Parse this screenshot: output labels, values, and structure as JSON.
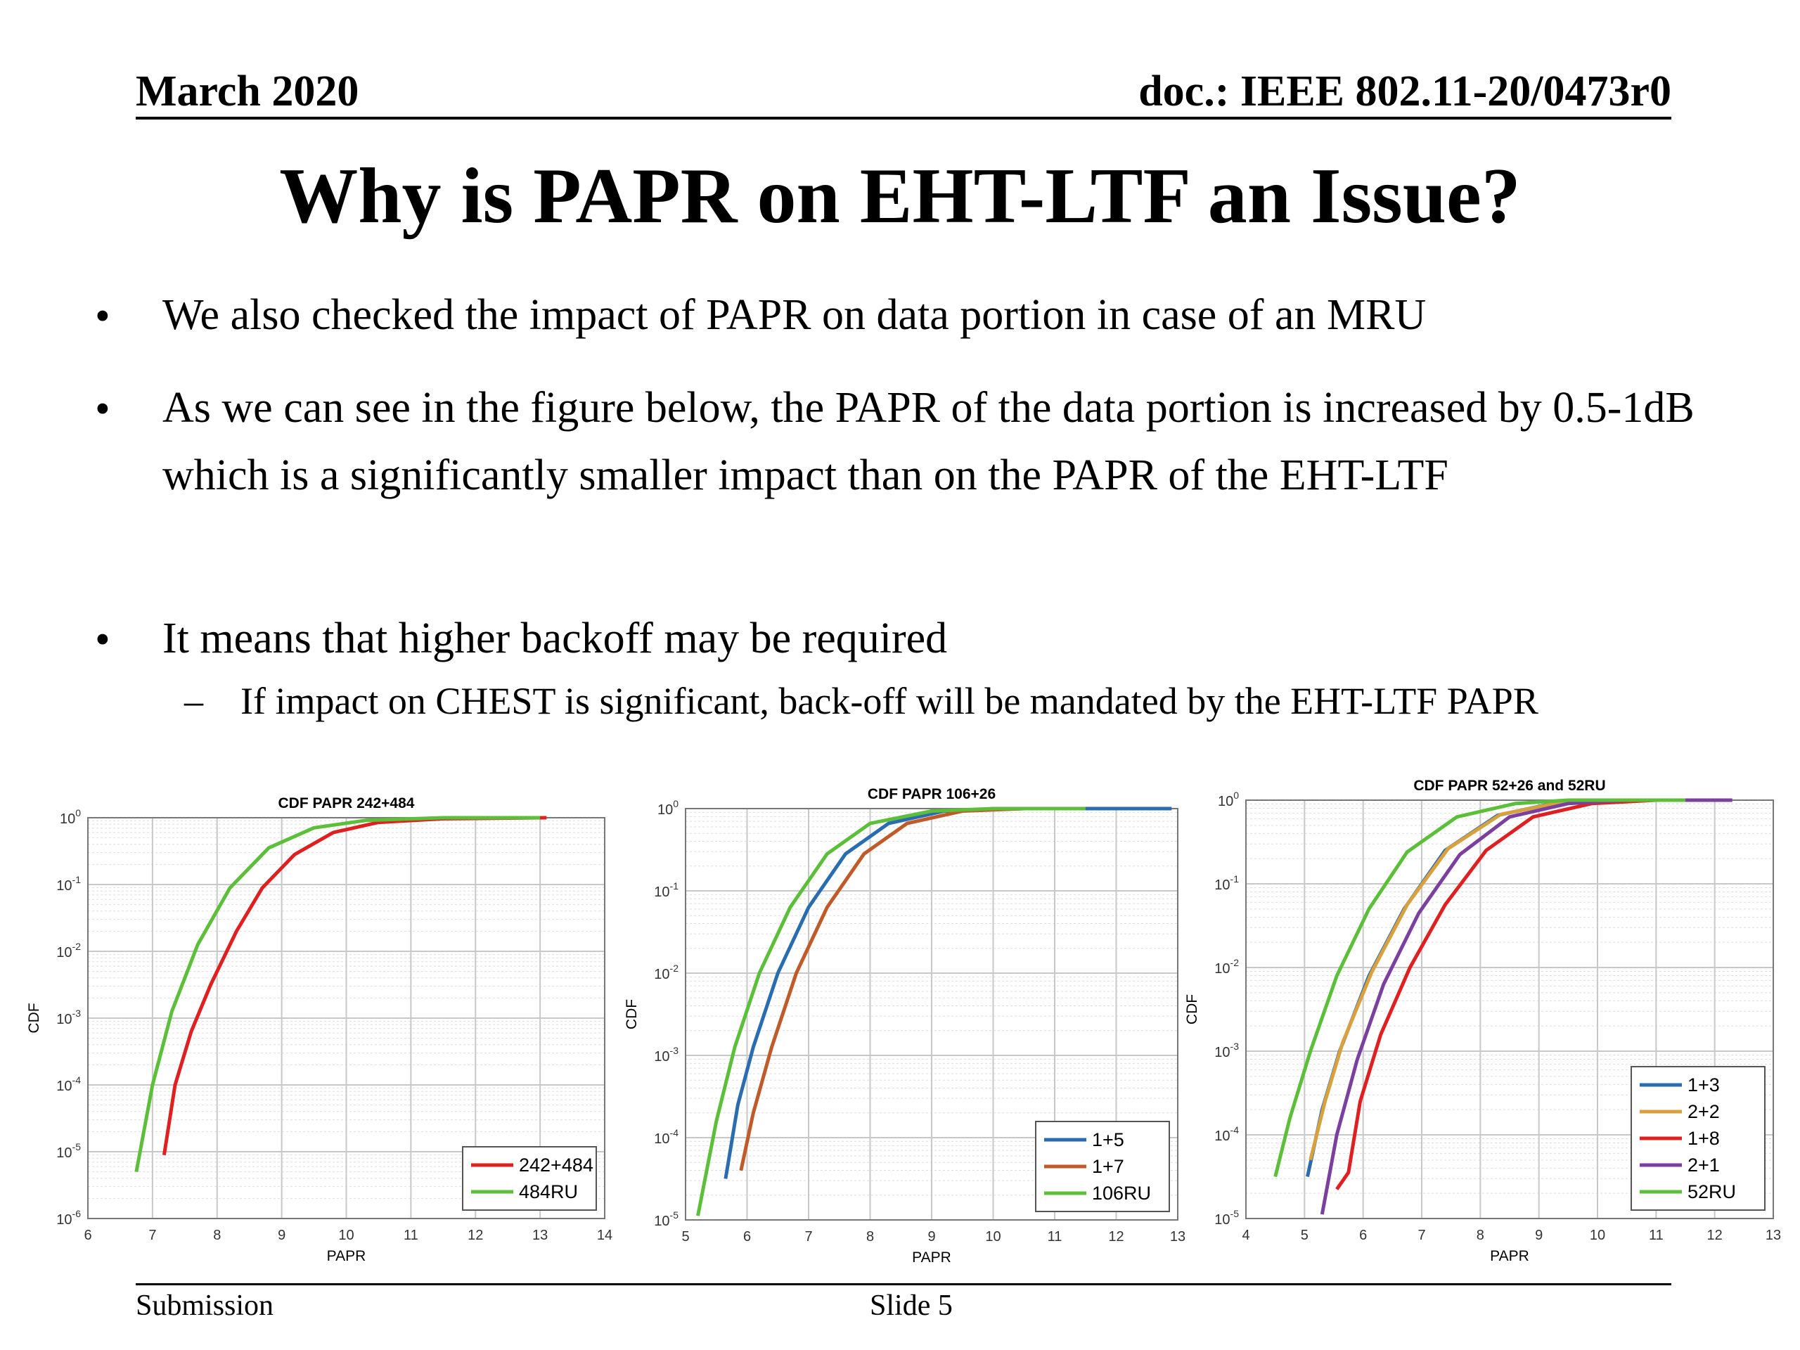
{
  "header": {
    "date": "March 2020",
    "doc": "doc.: IEEE 802.11-20/0473r0"
  },
  "title": "Why is PAPR on EHT-LTF an Issue?",
  "bullets": [
    {
      "marker": "•",
      "text": "We also checked the impact of PAPR on data portion in case of an MRU"
    },
    {
      "marker": "•",
      "text": "As we can see in the figure below, the PAPR of the data portion is increased by 0.5-1dB which is a significantly smaller impact than on the PAPR of the EHT-LTF"
    },
    {
      "marker": "•",
      "text": "It means that higher backoff may be required"
    }
  ],
  "sub_bullet": {
    "marker": "–",
    "text": "If impact on CHEST is significant, back-off will be mandated by the EHT-LTF PAPR"
  },
  "footer": {
    "left": "Submission",
    "center": "Slide 5"
  },
  "chart_data": [
    {
      "type": "line",
      "title": "CDF PAPR 242+484",
      "xlabel": "PAPR",
      "ylabel": "CDF",
      "xlim": [
        6,
        14
      ],
      "ylim_exp": [
        -6,
        0
      ],
      "yscale": "log",
      "xticks": [
        "6",
        "7",
        "8",
        "9",
        "10",
        "11",
        "12",
        "13",
        "14"
      ],
      "yticks": [
        "10^-6",
        "10^-5",
        "10^-4",
        "10^-3",
        "10^-2",
        "10^-1",
        "10^0"
      ],
      "grid": true,
      "legend": "bottom-right",
      "series": [
        {
          "name": "242+484",
          "color": "#e02020",
          "exp_values": true,
          "points": [
            [
              7.18,
              -5.05
            ],
            [
              7.35,
              -4.0
            ],
            [
              7.6,
              -3.2
            ],
            [
              7.9,
              -2.5
            ],
            [
              8.3,
              -1.7
            ],
            [
              8.7,
              -1.05
            ],
            [
              9.2,
              -0.55
            ],
            [
              9.8,
              -0.22
            ],
            [
              10.5,
              -0.07
            ],
            [
              11.5,
              -0.015
            ],
            [
              13.1,
              0
            ]
          ]
        },
        {
          "name": "484RU",
          "color": "#5cbf3a",
          "exp_values": true,
          "points": [
            [
              6.75,
              -5.3
            ],
            [
              7.0,
              -4.0
            ],
            [
              7.3,
              -2.9
            ],
            [
              7.7,
              -1.9
            ],
            [
              8.2,
              -1.05
            ],
            [
              8.8,
              -0.45
            ],
            [
              9.5,
              -0.15
            ],
            [
              10.3,
              -0.04
            ],
            [
              11.5,
              0
            ],
            [
              13.0,
              0
            ]
          ]
        }
      ]
    },
    {
      "type": "line",
      "title": "CDF PAPR 106+26",
      "xlabel": "PAPR",
      "ylabel": "CDF",
      "xlim": [
        5,
        13
      ],
      "ylim_exp": [
        -5,
        0
      ],
      "yscale": "log",
      "xticks": [
        "5",
        "6",
        "7",
        "8",
        "9",
        "10",
        "11",
        "12",
        "13"
      ],
      "yticks": [
        "10^-5",
        "10^-4",
        "10^-3",
        "10^-2",
        "10^-1",
        "10^0"
      ],
      "grid": true,
      "legend": "bottom-right",
      "series": [
        {
          "name": "1+5",
          "color": "#2a6cb0",
          "exp_values": true,
          "points": [
            [
              5.65,
              -4.5
            ],
            [
              5.85,
              -3.6
            ],
            [
              6.1,
              -2.9
            ],
            [
              6.5,
              -2.0
            ],
            [
              7.0,
              -1.2
            ],
            [
              7.6,
              -0.55
            ],
            [
              8.3,
              -0.18
            ],
            [
              9.2,
              -0.03
            ],
            [
              10.5,
              0
            ],
            [
              12.9,
              0
            ]
          ]
        },
        {
          "name": "1+7",
          "color": "#c05a28",
          "exp_values": true,
          "points": [
            [
              5.9,
              -4.4
            ],
            [
              6.1,
              -3.7
            ],
            [
              6.4,
              -2.9
            ],
            [
              6.8,
              -2.0
            ],
            [
              7.3,
              -1.2
            ],
            [
              7.9,
              -0.55
            ],
            [
              8.6,
              -0.18
            ],
            [
              9.5,
              -0.03
            ],
            [
              10.5,
              0
            ],
            [
              11.5,
              0
            ]
          ]
        },
        {
          "name": "106RU",
          "color": "#5cbf3a",
          "exp_values": true,
          "points": [
            [
              5.2,
              -4.95
            ],
            [
              5.5,
              -3.8
            ],
            [
              5.8,
              -2.9
            ],
            [
              6.2,
              -2.0
            ],
            [
              6.7,
              -1.2
            ],
            [
              7.3,
              -0.55
            ],
            [
              8.0,
              -0.18
            ],
            [
              9.0,
              -0.03
            ],
            [
              10.0,
              0
            ],
            [
              11.5,
              0
            ]
          ]
        }
      ]
    },
    {
      "type": "line",
      "title": "CDF PAPR 52+26 and 52RU",
      "xlabel": "PAPR",
      "ylabel": "CDF",
      "xlim": [
        4,
        13
      ],
      "ylim_exp": [
        -5,
        0
      ],
      "yscale": "log",
      "xticks": [
        "4",
        "5",
        "6",
        "7",
        "8",
        "9",
        "10",
        "11",
        "12",
        "13"
      ],
      "yticks": [
        "10^-5",
        "10^-4",
        "10^-3",
        "10^-2",
        "10^-1",
        "10^0"
      ],
      "grid": true,
      "legend": "bottom-right",
      "series": [
        {
          "name": "1+3",
          "color": "#2a6cb0",
          "exp_values": true,
          "points": [
            [
              5.05,
              -4.5
            ],
            [
              5.3,
              -3.7
            ],
            [
              5.6,
              -3.0
            ],
            [
              6.1,
              -2.1
            ],
            [
              6.7,
              -1.3
            ],
            [
              7.4,
              -0.6
            ],
            [
              8.3,
              -0.18
            ],
            [
              9.3,
              -0.03
            ],
            [
              10.5,
              0
            ],
            [
              12.0,
              0
            ]
          ]
        },
        {
          "name": "2+2",
          "color": "#d9a13c",
          "exp_values": true,
          "points": [
            [
              5.1,
              -4.3
            ],
            [
              5.35,
              -3.6
            ],
            [
              5.65,
              -2.9
            ],
            [
              6.15,
              -2.05
            ],
            [
              6.75,
              -1.25
            ],
            [
              7.45,
              -0.58
            ],
            [
              8.35,
              -0.17
            ],
            [
              9.35,
              -0.03
            ],
            [
              10.5,
              0
            ],
            [
              12.0,
              0
            ]
          ]
        },
        {
          "name": "1+8",
          "color": "#e02020",
          "exp_values": true,
          "points": [
            [
              5.55,
              -4.65
            ],
            [
              5.75,
              -4.45
            ],
            [
              5.95,
              -3.6
            ],
            [
              6.3,
              -2.8
            ],
            [
              6.8,
              -2.0
            ],
            [
              7.4,
              -1.25
            ],
            [
              8.1,
              -0.6
            ],
            [
              8.9,
              -0.2
            ],
            [
              9.9,
              -0.04
            ],
            [
              11.0,
              0
            ],
            [
              12.0,
              0
            ]
          ]
        },
        {
          "name": "2+1",
          "color": "#7b3fa0",
          "exp_values": true,
          "points": [
            [
              5.3,
              -4.95
            ],
            [
              5.55,
              -4.0
            ],
            [
              5.9,
              -3.1
            ],
            [
              6.35,
              -2.2
            ],
            [
              6.95,
              -1.35
            ],
            [
              7.65,
              -0.65
            ],
            [
              8.5,
              -0.2
            ],
            [
              9.5,
              -0.04
            ],
            [
              10.5,
              0
            ],
            [
              12.3,
              0
            ]
          ]
        },
        {
          "name": "52RU",
          "color": "#5cbf3a",
          "exp_values": true,
          "points": [
            [
              4.5,
              -4.5
            ],
            [
              4.75,
              -3.8
            ],
            [
              5.1,
              -3.0
            ],
            [
              5.55,
              -2.1
            ],
            [
              6.1,
              -1.3
            ],
            [
              6.75,
              -0.62
            ],
            [
              7.6,
              -0.2
            ],
            [
              8.6,
              -0.04
            ],
            [
              9.5,
              0
            ],
            [
              11.5,
              0
            ]
          ]
        }
      ]
    }
  ]
}
